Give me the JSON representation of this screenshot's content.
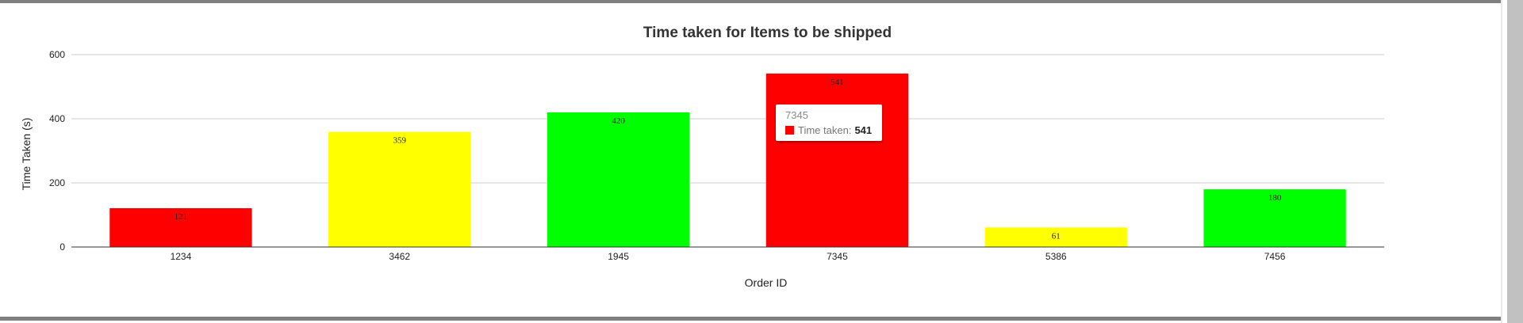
{
  "chart_data": {
    "type": "bar",
    "title": "Time taken for Items to be shipped",
    "xlabel": "Order ID",
    "ylabel": "Time Taken (s)",
    "ylim": [
      0,
      600
    ],
    "yticks": [
      0,
      200,
      400,
      600
    ],
    "grid": true,
    "legend": "none",
    "categories": [
      "1234",
      "3462",
      "1945",
      "7345",
      "5386",
      "7456"
    ],
    "series": [
      {
        "values": [
          121,
          359,
          420,
          541,
          61,
          180
        ],
        "colors": [
          "#ff0000",
          "#ffff00",
          "#00ff00",
          "#ff0000",
          "#ffff00",
          "#00ff00"
        ]
      }
    ]
  },
  "tooltip": {
    "title": "7345",
    "label": "Time taken:",
    "value": "541",
    "color": "#ff0000"
  }
}
